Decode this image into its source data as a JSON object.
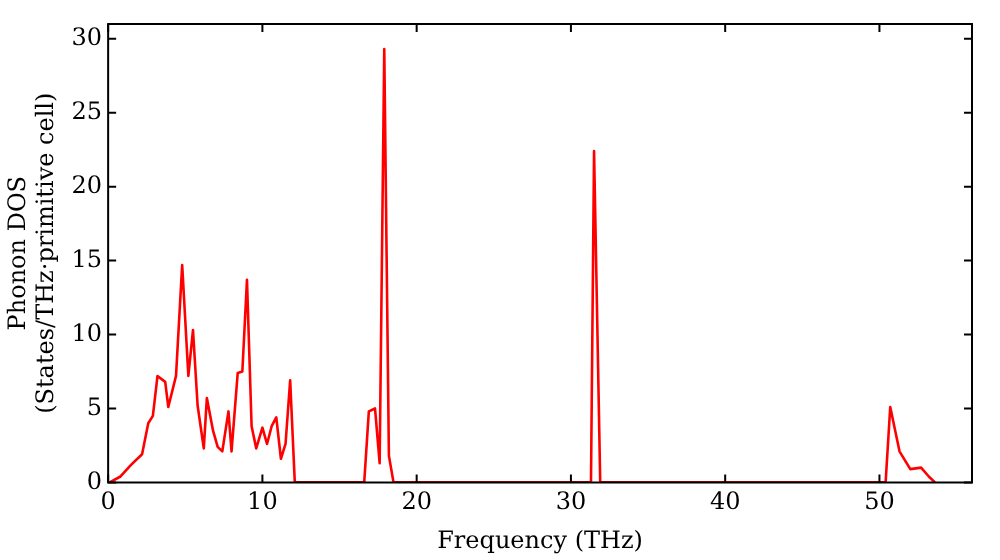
{
  "chart_data": {
    "type": "line",
    "xlabel": "Frequency (THz)",
    "ylabel": "Phonon DOS\n(States/THz·primitive cell)",
    "xlim": [
      0,
      56
    ],
    "ylim": [
      0,
      31
    ],
    "xticks": [
      0,
      10,
      20,
      30,
      40,
      50
    ],
    "yticks": [
      0,
      5,
      10,
      15,
      20,
      25,
      30
    ],
    "grid": false,
    "legend": false,
    "marker": "none",
    "line_style": "solid",
    "series": [
      {
        "color": "#ff0000",
        "x": [
          0.1,
          0.8,
          1.5,
          2.2,
          2.6,
          2.9,
          3.2,
          3.7,
          3.9,
          4.4,
          4.8,
          5.2,
          5.5,
          5.8,
          6.2,
          6.4,
          6.8,
          7.1,
          7.4,
          7.8,
          8.0,
          8.4,
          8.7,
          9.0,
          9.3,
          9.6,
          10.0,
          10.3,
          10.6,
          10.9,
          11.2,
          11.5,
          11.8,
          12.1,
          16.6,
          16.9,
          17.3,
          17.6,
          17.9,
          18.2,
          18.5,
          31.3,
          31.5,
          31.9,
          50.4,
          50.7,
          51.3,
          52.0,
          52.7,
          53.2,
          53.6
        ],
        "values": [
          0,
          0.4,
          1.2,
          1.9,
          4.0,
          4.5,
          7.2,
          6.8,
          5.1,
          7.2,
          14.7,
          7.2,
          10.3,
          5.2,
          2.3,
          5.7,
          3.5,
          2.4,
          2.1,
          4.8,
          2.1,
          7.4,
          7.5,
          13.7,
          3.8,
          2.3,
          3.7,
          2.6,
          3.8,
          4.4,
          1.6,
          2.6,
          6.9,
          0,
          0,
          4.8,
          5.0,
          1.3,
          29.3,
          1.8,
          0,
          0,
          22.4,
          0,
          0,
          5.1,
          2.1,
          0.9,
          1.0,
          0.4,
          0
        ]
      }
    ]
  }
}
